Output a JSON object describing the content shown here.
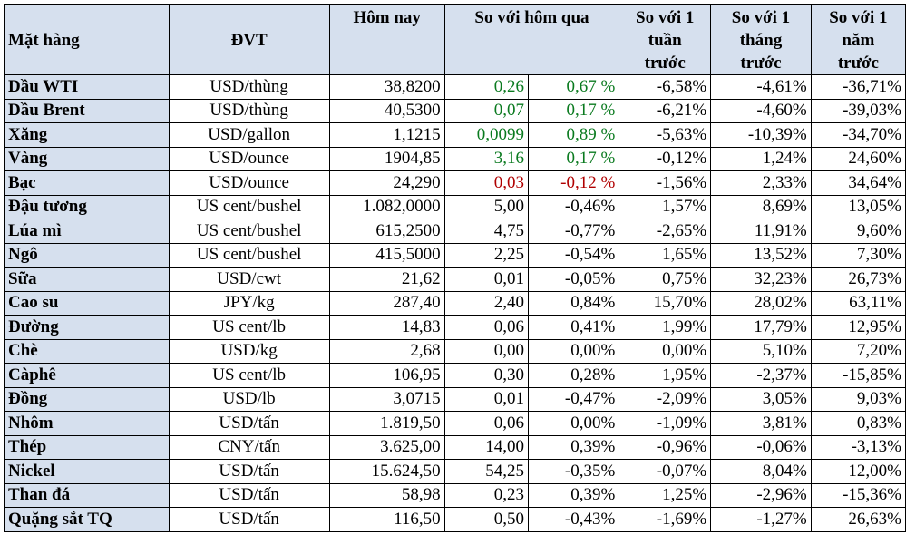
{
  "headers": {
    "item": "Mặt hàng",
    "unit": "ĐVT",
    "today": "Hôm nay",
    "vs_yesterday": "So với hôm qua",
    "vs_week": [
      "So với 1",
      "tuần",
      "trước"
    ],
    "vs_month": [
      "So với 1",
      "tháng",
      "trước"
    ],
    "vs_year": [
      "So với 1",
      "năm",
      "trước"
    ]
  },
  "colors": {
    "header_bg": "#d6e0ee",
    "positive": "#0a7a1f",
    "negative": "#b00000"
  },
  "rows": [
    {
      "name": "Dầu WTI",
      "unit": "USD/thùng",
      "today": "38,8200",
      "chg": "0,26",
      "pct": "0,67 %",
      "week": "-6,58%",
      "month": "-4,61%",
      "year": "-36,71%",
      "tone": "pos"
    },
    {
      "name": "Dầu Brent",
      "unit": "USD/thùng",
      "today": "40,5300",
      "chg": "0,07",
      "pct": "0,17 %",
      "week": "-6,21%",
      "month": "-4,60%",
      "year": "-39,03%",
      "tone": "pos"
    },
    {
      "name": "Xăng",
      "unit": "USD/gallon",
      "today": "1,1215",
      "chg": "0,0099",
      "pct": "0,89 %",
      "week": "-5,63%",
      "month": "-10,39%",
      "year": "-34,70%",
      "tone": "pos"
    },
    {
      "name": "Vàng",
      "unit": "USD/ounce",
      "today": "1904,85",
      "chg": "3,16",
      "pct": "0,17 %",
      "week": "-0,12%",
      "month": "1,24%",
      "year": "24,60%",
      "tone": "pos"
    },
    {
      "name": "Bạc",
      "unit": "USD/ounce",
      "today": "24,290",
      "chg": "0,03",
      "pct": "-0,12 %",
      "week": "-1,56%",
      "month": "2,33%",
      "year": "34,64%",
      "tone": "neg"
    },
    {
      "name": "Đậu tương",
      "unit": "US cent/bushel",
      "today": "1.082,0000",
      "chg": "5,00",
      "pct": "-0,46%",
      "week": "1,57%",
      "month": "8,69%",
      "year": "13,05%",
      "tone": ""
    },
    {
      "name": "Lúa mì",
      "unit": "US cent/bushel",
      "today": "615,2500",
      "chg": "4,75",
      "pct": "-0,77%",
      "week": "-2,65%",
      "month": "11,91%",
      "year": "9,60%",
      "tone": ""
    },
    {
      "name": "Ngô",
      "unit": "US cent/bushel",
      "today": "415,5000",
      "chg": "2,25",
      "pct": "-0,54%",
      "week": "1,65%",
      "month": "13,52%",
      "year": "7,30%",
      "tone": ""
    },
    {
      "name": "Sữa",
      "unit": "USD/cwt",
      "today": "21,62",
      "chg": "0,01",
      "pct": "-0,05%",
      "week": "0,75%",
      "month": "32,23%",
      "year": "26,73%",
      "tone": ""
    },
    {
      "name": "Cao su",
      "unit": "JPY/kg",
      "today": "287,40",
      "chg": "2,40",
      "pct": "0,84%",
      "week": "15,70%",
      "month": "28,02%",
      "year": "63,11%",
      "tone": ""
    },
    {
      "name": "Đường",
      "unit": "US cent/lb",
      "today": "14,83",
      "chg": "0,06",
      "pct": "0,41%",
      "week": "1,99%",
      "month": "17,79%",
      "year": "12,95%",
      "tone": ""
    },
    {
      "name": "Chè",
      "unit": "USD/kg",
      "today": "2,68",
      "chg": "0,00",
      "pct": "0,00%",
      "week": "0,00%",
      "month": "5,10%",
      "year": "7,20%",
      "tone": ""
    },
    {
      "name": "Càphê",
      "unit": "US cent/lb",
      "today": "106,95",
      "chg": "0,30",
      "pct": "0,28%",
      "week": "1,95%",
      "month": "-2,37%",
      "year": "-15,85%",
      "tone": ""
    },
    {
      "name": "Đồng",
      "unit": "USD/lb",
      "today": "3,0715",
      "chg": "0,01",
      "pct": "-0,47%",
      "week": "-2,09%",
      "month": "3,05%",
      "year": "9,03%",
      "tone": ""
    },
    {
      "name": "Nhôm",
      "unit": "USD/tấn",
      "today": "1.819,50",
      "chg": "0,06",
      "pct": "0,00%",
      "week": "-1,09%",
      "month": "3,81%",
      "year": "0,83%",
      "tone": ""
    },
    {
      "name": "Thép",
      "unit": "CNY/tấn",
      "today": "3.625,00",
      "chg": "14,00",
      "pct": "0,39%",
      "week": "-0,96%",
      "month": "-0,06%",
      "year": "-3,13%",
      "tone": ""
    },
    {
      "name": "Nickel",
      "unit": "USD/tấn",
      "today": "15.624,50",
      "chg": "54,25",
      "pct": "-0,35%",
      "week": "-0,07%",
      "month": "8,04%",
      "year": "12,00%",
      "tone": ""
    },
    {
      "name": "Than đá",
      "unit": "USD/tấn",
      "today": "58,98",
      "chg": "0,23",
      "pct": "0,39%",
      "week": "1,25%",
      "month": "-2,96%",
      "year": "-15,36%",
      "tone": ""
    },
    {
      "name": "Quặng sắt TQ",
      "unit": "USD/tấn",
      "today": "116,50",
      "chg": "0,50",
      "pct": "-0,43%",
      "week": "-1,69%",
      "month": "-1,27%",
      "year": "26,63%",
      "tone": ""
    }
  ]
}
